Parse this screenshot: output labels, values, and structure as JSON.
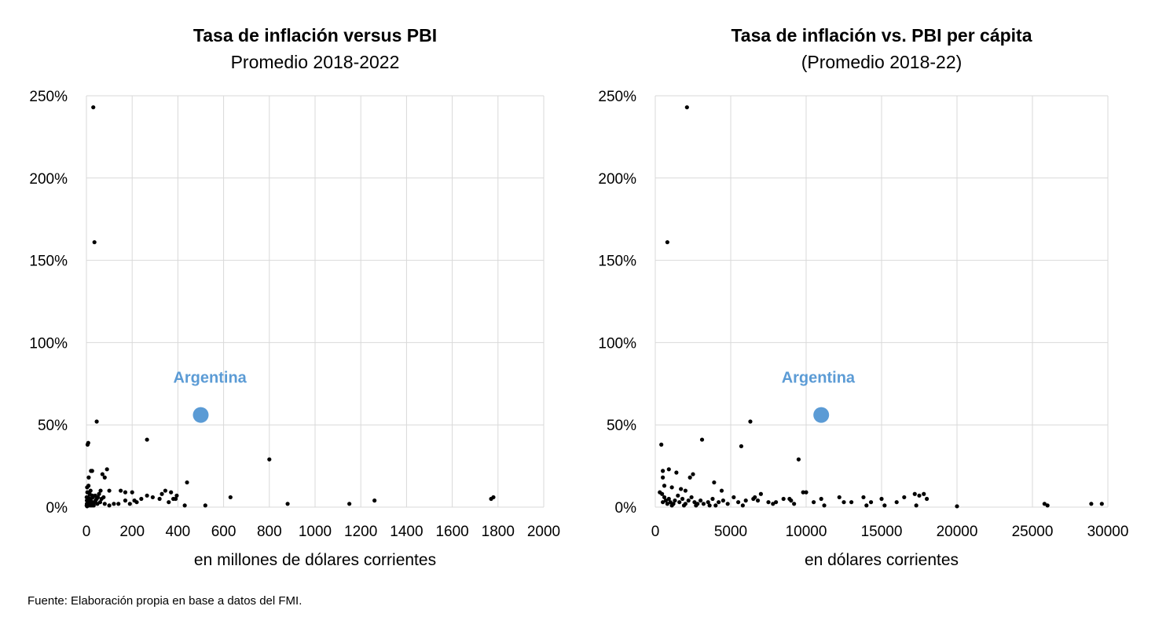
{
  "footer": {
    "source": "Fuente: Elaboración propia en base a datos del FMI."
  },
  "colors": {
    "point": "#000000",
    "highlight": "#5b9bd5",
    "grid": "#d9d9d9"
  },
  "chart_data": [
    {
      "type": "scatter",
      "title": "Tasa de inflación versus PBI",
      "subtitle": "Promedio 2018-2022",
      "xlabel": "en millones de dólares corrientes",
      "ylabel": "",
      "xlim": [
        0,
        2000
      ],
      "ylim": [
        0,
        250
      ],
      "x_ticks": [
        0,
        200,
        400,
        600,
        800,
        1000,
        1200,
        1400,
        1600,
        1800,
        2000
      ],
      "x_tick_labels": [
        "0",
        "200",
        "400",
        "600",
        "800",
        "1000",
        "1200",
        "1400",
        "1600",
        "1800",
        "2000"
      ],
      "y_ticks": [
        0,
        50,
        100,
        150,
        200,
        250
      ],
      "y_tick_labels": [
        "0%",
        "50%",
        "100%",
        "150%",
        "200%",
        "250%"
      ],
      "grid": true,
      "highlight": {
        "label": "Argentina",
        "x": 500,
        "y": 56,
        "label_x": 540,
        "label_y": 79
      },
      "points": [
        [
          30,
          243
        ],
        [
          35,
          161
        ],
        [
          45,
          52
        ],
        [
          265,
          41
        ],
        [
          5,
          38
        ],
        [
          8,
          39
        ],
        [
          800,
          29
        ],
        [
          90,
          23
        ],
        [
          20,
          22
        ],
        [
          25,
          22
        ],
        [
          70,
          20
        ],
        [
          80,
          18
        ],
        [
          10,
          18
        ],
        [
          440,
          15
        ],
        [
          100,
          10
        ],
        [
          150,
          10
        ],
        [
          170,
          9
        ],
        [
          200,
          9
        ],
        [
          345,
          10
        ],
        [
          370,
          9
        ],
        [
          265,
          7
        ],
        [
          290,
          6
        ],
        [
          320,
          5
        ],
        [
          390,
          5
        ],
        [
          630,
          6
        ],
        [
          1770,
          5
        ],
        [
          1780,
          6
        ],
        [
          1260,
          4
        ],
        [
          1150,
          2
        ],
        [
          880,
          2
        ],
        [
          520,
          1
        ],
        [
          430,
          1
        ],
        [
          220,
          3
        ],
        [
          190,
          2
        ],
        [
          170,
          4
        ],
        [
          140,
          2
        ],
        [
          120,
          2
        ],
        [
          100,
          1
        ],
        [
          80,
          2
        ],
        [
          60,
          3
        ],
        [
          55,
          8
        ],
        [
          50,
          6
        ],
        [
          45,
          5
        ],
        [
          40,
          4
        ],
        [
          35,
          3
        ],
        [
          30,
          2
        ],
        [
          28,
          6
        ],
        [
          25,
          7
        ],
        [
          22,
          3
        ],
        [
          20,
          4
        ],
        [
          18,
          10
        ],
        [
          15,
          5
        ],
        [
          12,
          2
        ],
        [
          10,
          3
        ],
        [
          8,
          6
        ],
        [
          6,
          2
        ],
        [
          5,
          1
        ],
        [
          4,
          9
        ],
        [
          3,
          12
        ],
        [
          2,
          4
        ],
        [
          2,
          2
        ],
        [
          1,
          1
        ],
        [
          1,
          6
        ],
        [
          3,
          0.5
        ],
        [
          7,
          1
        ],
        [
          9,
          13
        ],
        [
          14,
          8
        ],
        [
          16,
          1
        ],
        [
          24,
          1
        ],
        [
          32,
          1
        ],
        [
          38,
          7
        ],
        [
          48,
          2
        ],
        [
          62,
          10
        ],
        [
          66,
          5
        ],
        [
          75,
          6
        ],
        [
          360,
          3
        ],
        [
          380,
          5
        ],
        [
          395,
          7
        ],
        [
          330,
          8
        ],
        [
          240,
          5
        ],
        [
          210,
          4
        ]
      ]
    },
    {
      "type": "scatter",
      "title": "Tasa de inflación vs. PBI per cápita",
      "subtitle": "(Promedio 2018-22)",
      "xlabel": "en dólares corrientes",
      "ylabel": "",
      "xlim": [
        0,
        30000
      ],
      "ylim": [
        0,
        250
      ],
      "x_ticks": [
        0,
        5000,
        10000,
        15000,
        20000,
        25000,
        30000
      ],
      "x_tick_labels": [
        "0",
        "5000",
        "10000",
        "15000",
        "20000",
        "25000",
        "30000"
      ],
      "y_ticks": [
        0,
        50,
        100,
        150,
        200,
        250
      ],
      "y_tick_labels": [
        "0%",
        "50%",
        "100%",
        "150%",
        "200%",
        "250%"
      ],
      "grid": true,
      "highlight": {
        "label": "Argentina",
        "x": 11000,
        "y": 56,
        "label_x": 10800,
        "label_y": 79
      },
      "points": [
        [
          2100,
          243
        ],
        [
          800,
          161
        ],
        [
          6300,
          52
        ],
        [
          3100,
          41
        ],
        [
          400,
          38
        ],
        [
          5700,
          37
        ],
        [
          9500,
          29
        ],
        [
          900,
          23
        ],
        [
          500,
          22
        ],
        [
          1400,
          21
        ],
        [
          2500,
          20
        ],
        [
          2300,
          18
        ],
        [
          500,
          18
        ],
        [
          3900,
          15
        ],
        [
          600,
          13
        ],
        [
          1100,
          12
        ],
        [
          1700,
          11
        ],
        [
          2000,
          10
        ],
        [
          4400,
          10
        ],
        [
          7000,
          8
        ],
        [
          9800,
          9
        ],
        [
          10000,
          9
        ],
        [
          13800,
          6
        ],
        [
          12200,
          6
        ],
        [
          16500,
          6
        ],
        [
          17200,
          8
        ],
        [
          17500,
          7
        ],
        [
          17800,
          8
        ],
        [
          18000,
          5
        ],
        [
          15000,
          5
        ],
        [
          14300,
          3
        ],
        [
          12500,
          3
        ],
        [
          11000,
          5
        ],
        [
          10500,
          3
        ],
        [
          9000,
          4
        ],
        [
          8500,
          5
        ],
        [
          8000,
          3
        ],
        [
          7500,
          3
        ],
        [
          6800,
          4
        ],
        [
          6500,
          5
        ],
        [
          6000,
          4
        ],
        [
          5500,
          3
        ],
        [
          5200,
          6
        ],
        [
          4800,
          2
        ],
        [
          4500,
          4
        ],
        [
          4200,
          3
        ],
        [
          3800,
          5
        ],
        [
          3500,
          3
        ],
        [
          3200,
          2
        ],
        [
          3000,
          4
        ],
        [
          2800,
          2
        ],
        [
          2600,
          3
        ],
        [
          2400,
          6
        ],
        [
          2200,
          4
        ],
        [
          2000,
          2
        ],
        [
          1800,
          5
        ],
        [
          1600,
          3
        ],
        [
          1500,
          7
        ],
        [
          1300,
          4
        ],
        [
          1200,
          2
        ],
        [
          1000,
          3
        ],
        [
          900,
          5
        ],
        [
          800,
          2
        ],
        [
          700,
          4
        ],
        [
          600,
          6
        ],
        [
          500,
          3
        ],
        [
          450,
          8
        ],
        [
          300,
          9
        ],
        [
          1100,
          1
        ],
        [
          3600,
          1
        ],
        [
          5800,
          1
        ],
        [
          20000,
          0.5
        ],
        [
          25800,
          2
        ],
        [
          26000,
          1
        ],
        [
          28900,
          2
        ],
        [
          29600,
          2
        ],
        [
          14000,
          1
        ],
        [
          15200,
          1
        ],
        [
          17300,
          1
        ],
        [
          11200,
          1
        ],
        [
          9200,
          2
        ],
        [
          7800,
          2
        ],
        [
          4000,
          1
        ],
        [
          2700,
          1
        ],
        [
          1900,
          1
        ],
        [
          16000,
          3
        ],
        [
          13000,
          3
        ],
        [
          8900,
          5
        ],
        [
          6600,
          6
        ]
      ]
    }
  ]
}
